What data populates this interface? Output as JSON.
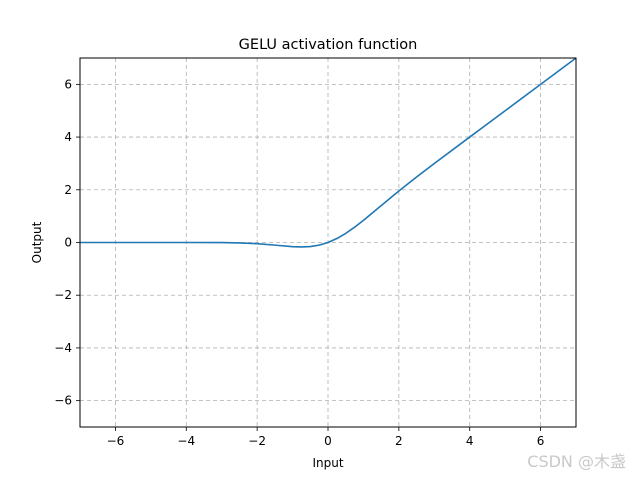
{
  "chart_data": {
    "type": "line",
    "title": "GELU activation function",
    "xlabel": "Input",
    "ylabel": "Output",
    "xlim": [
      -7,
      7
    ],
    "ylim": [
      -7,
      7
    ],
    "xticks": [
      -6,
      -4,
      -2,
      0,
      2,
      4,
      6
    ],
    "yticks": [
      -6,
      -4,
      -2,
      0,
      2,
      4,
      6
    ],
    "xtick_labels": [
      "−6",
      "−4",
      "−2",
      "0",
      "2",
      "4",
      "6"
    ],
    "ytick_labels": [
      "−6",
      "−4",
      "−2",
      "0",
      "2",
      "4",
      "6"
    ],
    "grid": true,
    "series": [
      {
        "color": "#1f77b4",
        "x": [
          -7,
          -6,
          -5,
          -4,
          -3,
          -2.5,
          -2,
          -1.5,
          -1,
          -0.75,
          -0.5,
          -0.25,
          0,
          0.25,
          0.5,
          0.75,
          1,
          1.5,
          2,
          2.5,
          3,
          4,
          5,
          6,
          7
        ],
        "values": [
          0,
          0,
          0,
          -0.0001,
          -0.004,
          -0.0155,
          -0.0455,
          -0.1002,
          -0.1587,
          -0.17,
          -0.1543,
          -0.0994,
          0,
          0.1506,
          0.3457,
          0.58,
          0.8413,
          1.3998,
          1.9545,
          2.4845,
          2.996,
          3.9999,
          5,
          6,
          7
        ]
      }
    ]
  },
  "watermark": "CSDN @木盏"
}
